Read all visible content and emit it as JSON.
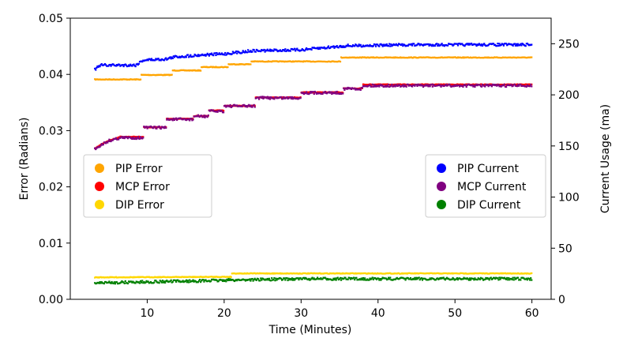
{
  "chart_data": {
    "type": "scatter",
    "title": "",
    "xlabel": "Time (Minutes)",
    "ylabel_left": "Error (Radians)",
    "ylabel_right": "Current Usage (ma)",
    "xlim": [
      0,
      62.5
    ],
    "ylim_left": [
      0,
      0.05
    ],
    "ylim_right": [
      0,
      275
    ],
    "xticks": [
      10,
      20,
      30,
      40,
      50,
      60
    ],
    "yticks_left": [
      "0.00",
      "0.01",
      "0.02",
      "0.03",
      "0.04",
      "0.05"
    ],
    "yticks_right": [
      0,
      50,
      100,
      150,
      200,
      250
    ],
    "grid": false,
    "legend_left": {
      "position": "center-left",
      "entries": [
        {
          "name": "PIP Error",
          "color": "#ffa500"
        },
        {
          "name": "MCP Error",
          "color": "#ff0000"
        },
        {
          "name": "DIP Error",
          "color": "#ffd700"
        }
      ]
    },
    "legend_right": {
      "position": "center-right",
      "entries": [
        {
          "name": "PIP Current",
          "color": "#0000ff"
        },
        {
          "name": "MCP Current",
          "color": "#800080"
        },
        {
          "name": "DIP Current",
          "color": "#008000"
        }
      ]
    },
    "series": [
      {
        "name": "PIP Error",
        "axis": "left",
        "color": "#ffa500",
        "style": "step",
        "points": [
          [
            3.2,
            0.0391
          ],
          [
            9.2,
            0.0391
          ],
          [
            9.2,
            0.0399
          ],
          [
            13.3,
            0.0399
          ],
          [
            13.3,
            0.0407
          ],
          [
            17.0,
            0.0407
          ],
          [
            17.0,
            0.0413
          ],
          [
            20.5,
            0.0413
          ],
          [
            20.5,
            0.0418
          ],
          [
            23.5,
            0.0418
          ],
          [
            23.5,
            0.0423
          ],
          [
            35.2,
            0.0423
          ],
          [
            35.2,
            0.043
          ],
          [
            60.0,
            0.043
          ]
        ]
      },
      {
        "name": "MCP Error",
        "axis": "left",
        "color": "#ff0000",
        "style": "step",
        "points": [
          [
            3.2,
            0.0268
          ],
          [
            4.0,
            0.0275
          ],
          [
            5.0,
            0.0282
          ],
          [
            6.5,
            0.0289
          ],
          [
            9.5,
            0.0289
          ],
          [
            9.5,
            0.0306
          ],
          [
            12.5,
            0.0306
          ],
          [
            12.5,
            0.0321
          ],
          [
            16.0,
            0.0321
          ],
          [
            16.0,
            0.0326
          ],
          [
            18.0,
            0.0326
          ],
          [
            18.0,
            0.0336
          ],
          [
            20.0,
            0.0336
          ],
          [
            20.0,
            0.0344
          ],
          [
            24.0,
            0.0344
          ],
          [
            24.0,
            0.0359
          ],
          [
            30.0,
            0.0359
          ],
          [
            30.0,
            0.0368
          ],
          [
            35.5,
            0.0368
          ],
          [
            35.5,
            0.0375
          ],
          [
            38.0,
            0.0375
          ],
          [
            38.0,
            0.0382
          ],
          [
            60.0,
            0.0382
          ]
        ]
      },
      {
        "name": "DIP Error",
        "axis": "left",
        "color": "#ffd700",
        "style": "line",
        "points": [
          [
            3.2,
            0.0039
          ],
          [
            21.0,
            0.004
          ],
          [
            21.0,
            0.0046
          ],
          [
            60.0,
            0.0046
          ]
        ]
      },
      {
        "name": "PIP Current",
        "axis": "right",
        "color": "#0000ff",
        "style": "noisy",
        "points": [
          [
            3.2,
            225
          ],
          [
            4.0,
            229
          ],
          [
            8.5,
            229
          ],
          [
            9.5,
            234
          ],
          [
            12.5,
            235
          ],
          [
            13.5,
            237
          ],
          [
            17.0,
            239
          ],
          [
            20.0,
            240
          ],
          [
            23.5,
            243
          ],
          [
            30.0,
            244
          ],
          [
            36.0,
            248
          ],
          [
            45.0,
            249
          ],
          [
            60.0,
            249
          ]
        ]
      },
      {
        "name": "MCP Current",
        "axis": "right",
        "color": "#800080",
        "style": "noisy",
        "points": [
          [
            3.2,
            147
          ],
          [
            4.0,
            151
          ],
          [
            5.0,
            155
          ],
          [
            6.5,
            158
          ],
          [
            9.5,
            158
          ],
          [
            9.5,
            168
          ],
          [
            12.5,
            168
          ],
          [
            12.5,
            176
          ],
          [
            16.0,
            176
          ],
          [
            16.0,
            179
          ],
          [
            18.0,
            179
          ],
          [
            18.0,
            184
          ],
          [
            20.0,
            184
          ],
          [
            20.0,
            189
          ],
          [
            24.0,
            189
          ],
          [
            24.0,
            197
          ],
          [
            30.0,
            197
          ],
          [
            30.0,
            202
          ],
          [
            35.5,
            202
          ],
          [
            35.5,
            206
          ],
          [
            38.0,
            206
          ],
          [
            38.0,
            209
          ],
          [
            60.0,
            209
          ]
        ]
      },
      {
        "name": "DIP Current",
        "axis": "right",
        "color": "#008000",
        "style": "noisy",
        "points": [
          [
            3.2,
            16
          ],
          [
            10.0,
            17
          ],
          [
            17.0,
            18
          ],
          [
            22.0,
            19
          ],
          [
            30.0,
            20
          ],
          [
            45.0,
            20
          ],
          [
            60.0,
            20
          ]
        ]
      }
    ]
  }
}
